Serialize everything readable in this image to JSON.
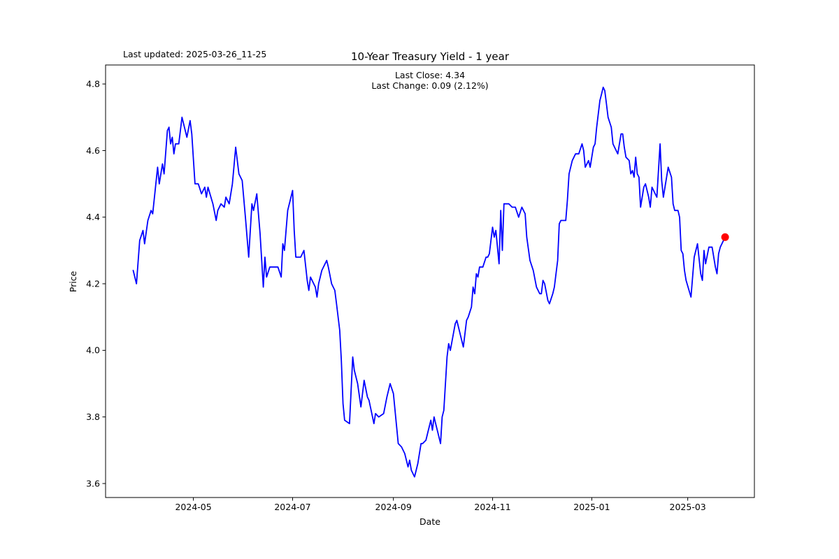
{
  "figure": {
    "last_updated": "Last updated: 2025-03-26_11-25",
    "title": "10-Year Treasury Yield - 1 year",
    "subtitle_line1": "Last Close: 4.34",
    "subtitle_line2": "Last Change: 0.09 (2.12%)",
    "xlabel": "Date",
    "ylabel": "Price"
  },
  "chart_data": {
    "type": "line",
    "title": "10-Year Treasury Yield - 1 year",
    "annotation": "Last updated: 2025-03-26_11-25",
    "subtitle": [
      "Last Close: 4.34",
      "Last Change: 0.09 (2.12%)"
    ],
    "xlabel": "Date",
    "ylabel": "Price",
    "grid": false,
    "legend": false,
    "line_color": "#0000ff",
    "marker_color": "#ff0000",
    "last_close": 4.34,
    "last_change": 0.09,
    "last_change_pct": "2.12%",
    "ylim": [
      3.558,
      4.857
    ],
    "xlim": [
      "2024-03-08",
      "2025-04-11"
    ],
    "y_ticks": [
      {
        "label": "3.6",
        "value": 3.6
      },
      {
        "label": "3.8",
        "value": 3.8
      },
      {
        "label": "4.0",
        "value": 4.0
      },
      {
        "label": "4.2",
        "value": 4.2
      },
      {
        "label": "4.4",
        "value": 4.4
      },
      {
        "label": "4.6",
        "value": 4.6
      },
      {
        "label": "4.8",
        "value": 4.8
      }
    ],
    "x_ticks": [
      {
        "label": "2024-05",
        "date": "2024-05-01"
      },
      {
        "label": "2024-07",
        "date": "2024-07-01"
      },
      {
        "label": "2024-09",
        "date": "2024-09-01"
      },
      {
        "label": "2024-11",
        "date": "2024-11-01"
      },
      {
        "label": "2025-01",
        "date": "2025-01-01"
      },
      {
        "label": "2025-03",
        "date": "2025-03-01"
      }
    ],
    "series": [
      {
        "name": "10-Year Treasury Yield",
        "points": [
          [
            "2024-03-25",
            4.24
          ],
          [
            "2024-03-27",
            4.2
          ],
          [
            "2024-03-29",
            4.33
          ],
          [
            "2024-03-31",
            4.36
          ],
          [
            "2024-04-01",
            4.32
          ],
          [
            "2024-04-03",
            4.39
          ],
          [
            "2024-04-05",
            4.42
          ],
          [
            "2024-04-06",
            4.41
          ],
          [
            "2024-04-09",
            4.55
          ],
          [
            "2024-04-10",
            4.5
          ],
          [
            "2024-04-12",
            4.56
          ],
          [
            "2024-04-13",
            4.53
          ],
          [
            "2024-04-15",
            4.66
          ],
          [
            "2024-04-16",
            4.67
          ],
          [
            "2024-04-17",
            4.62
          ],
          [
            "2024-04-18",
            4.64
          ],
          [
            "2024-04-19",
            4.59
          ],
          [
            "2024-04-20",
            4.62
          ],
          [
            "2024-04-22",
            4.62
          ],
          [
            "2024-04-24",
            4.7
          ],
          [
            "2024-04-27",
            4.64
          ],
          [
            "2024-04-29",
            4.69
          ],
          [
            "2024-04-30",
            4.65
          ],
          [
            "2024-05-02",
            4.5
          ],
          [
            "2024-05-04",
            4.5
          ],
          [
            "2024-05-06",
            4.47
          ],
          [
            "2024-05-08",
            4.49
          ],
          [
            "2024-05-09",
            4.46
          ],
          [
            "2024-05-10",
            4.49
          ],
          [
            "2024-05-13",
            4.44
          ],
          [
            "2024-05-15",
            4.39
          ],
          [
            "2024-05-16",
            4.42
          ],
          [
            "2024-05-18",
            4.44
          ],
          [
            "2024-05-20",
            4.43
          ],
          [
            "2024-05-21",
            4.46
          ],
          [
            "2024-05-23",
            4.44
          ],
          [
            "2024-05-25",
            4.5
          ],
          [
            "2024-05-27",
            4.61
          ],
          [
            "2024-05-29",
            4.53
          ],
          [
            "2024-05-31",
            4.51
          ],
          [
            "2024-06-02",
            4.4
          ],
          [
            "2024-06-04",
            4.28
          ],
          [
            "2024-06-06",
            4.44
          ],
          [
            "2024-06-07",
            4.42
          ],
          [
            "2024-06-09",
            4.47
          ],
          [
            "2024-06-11",
            4.35
          ],
          [
            "2024-06-13",
            4.19
          ],
          [
            "2024-06-14",
            4.28
          ],
          [
            "2024-06-15",
            4.22
          ],
          [
            "2024-06-17",
            4.25
          ],
          [
            "2024-06-20",
            4.25
          ],
          [
            "2024-06-22",
            4.25
          ],
          [
            "2024-06-24",
            4.22
          ],
          [
            "2024-06-25",
            4.32
          ],
          [
            "2024-06-26",
            4.3
          ],
          [
            "2024-06-28",
            4.42
          ],
          [
            "2024-07-01",
            4.48
          ],
          [
            "2024-07-02",
            4.36
          ],
          [
            "2024-07-03",
            4.28
          ],
          [
            "2024-07-05",
            4.28
          ],
          [
            "2024-07-06",
            4.28
          ],
          [
            "2024-07-08",
            4.3
          ],
          [
            "2024-07-10",
            4.21
          ],
          [
            "2024-07-11",
            4.18
          ],
          [
            "2024-07-12",
            4.22
          ],
          [
            "2024-07-15",
            4.19
          ],
          [
            "2024-07-16",
            4.16
          ],
          [
            "2024-07-17",
            4.2
          ],
          [
            "2024-07-19",
            4.24
          ],
          [
            "2024-07-22",
            4.27
          ],
          [
            "2024-07-23",
            4.25
          ],
          [
            "2024-07-25",
            4.2
          ],
          [
            "2024-07-27",
            4.18
          ],
          [
            "2024-07-28",
            4.14
          ],
          [
            "2024-07-30",
            4.06
          ],
          [
            "2024-07-31",
            3.97
          ],
          [
            "2024-08-01",
            3.84
          ],
          [
            "2024-08-02",
            3.79
          ],
          [
            "2024-08-05",
            3.78
          ],
          [
            "2024-08-07",
            3.98
          ],
          [
            "2024-08-08",
            3.94
          ],
          [
            "2024-08-10",
            3.9
          ],
          [
            "2024-08-12",
            3.83
          ],
          [
            "2024-08-14",
            3.91
          ],
          [
            "2024-08-16",
            3.86
          ],
          [
            "2024-08-17",
            3.85
          ],
          [
            "2024-08-20",
            3.78
          ],
          [
            "2024-08-21",
            3.81
          ],
          [
            "2024-08-23",
            3.8
          ],
          [
            "2024-08-26",
            3.81
          ],
          [
            "2024-08-28",
            3.86
          ],
          [
            "2024-08-30",
            3.9
          ],
          [
            "2024-09-01",
            3.87
          ],
          [
            "2024-09-03",
            3.77
          ],
          [
            "2024-09-04",
            3.72
          ],
          [
            "2024-09-06",
            3.71
          ],
          [
            "2024-09-08",
            3.69
          ],
          [
            "2024-09-10",
            3.65
          ],
          [
            "2024-09-11",
            3.67
          ],
          [
            "2024-09-12",
            3.64
          ],
          [
            "2024-09-14",
            3.62
          ],
          [
            "2024-09-16",
            3.66
          ],
          [
            "2024-09-18",
            3.72
          ],
          [
            "2024-09-19",
            3.72
          ],
          [
            "2024-09-21",
            3.73
          ],
          [
            "2024-09-22",
            3.75
          ],
          [
            "2024-09-24",
            3.79
          ],
          [
            "2024-09-25",
            3.76
          ],
          [
            "2024-09-26",
            3.8
          ],
          [
            "2024-09-27",
            3.78
          ],
          [
            "2024-09-29",
            3.74
          ],
          [
            "2024-09-30",
            3.72
          ],
          [
            "2024-10-01",
            3.8
          ],
          [
            "2024-10-02",
            3.82
          ],
          [
            "2024-10-04",
            3.98
          ],
          [
            "2024-10-05",
            4.02
          ],
          [
            "2024-10-06",
            4.0
          ],
          [
            "2024-10-09",
            4.08
          ],
          [
            "2024-10-10",
            4.09
          ],
          [
            "2024-10-14",
            4.01
          ],
          [
            "2024-10-16",
            4.09
          ],
          [
            "2024-10-17",
            4.1
          ],
          [
            "2024-10-19",
            4.13
          ],
          [
            "2024-10-20",
            4.19
          ],
          [
            "2024-10-21",
            4.17
          ],
          [
            "2024-10-22",
            4.23
          ],
          [
            "2024-10-23",
            4.22
          ],
          [
            "2024-10-24",
            4.25
          ],
          [
            "2024-10-26",
            4.25
          ],
          [
            "2024-10-28",
            4.28
          ],
          [
            "2024-10-29",
            4.28
          ],
          [
            "2024-10-30",
            4.29
          ],
          [
            "2024-11-01",
            4.37
          ],
          [
            "2024-11-02",
            4.34
          ],
          [
            "2024-11-03",
            4.36
          ],
          [
            "2024-11-05",
            4.26
          ],
          [
            "2024-11-06",
            4.42
          ],
          [
            "2024-11-07",
            4.3
          ],
          [
            "2024-11-08",
            4.44
          ],
          [
            "2024-11-11",
            4.44
          ],
          [
            "2024-11-13",
            4.43
          ],
          [
            "2024-11-15",
            4.43
          ],
          [
            "2024-11-17",
            4.4
          ],
          [
            "2024-11-19",
            4.43
          ],
          [
            "2024-11-21",
            4.41
          ],
          [
            "2024-11-22",
            4.34
          ],
          [
            "2024-11-24",
            4.27
          ],
          [
            "2024-11-26",
            4.24
          ],
          [
            "2024-11-28",
            4.19
          ],
          [
            "2024-11-30",
            4.17
          ],
          [
            "2024-12-01",
            4.17
          ],
          [
            "2024-12-02",
            4.21
          ],
          [
            "2024-12-03",
            4.2
          ],
          [
            "2024-12-05",
            4.15
          ],
          [
            "2024-12-06",
            4.14
          ],
          [
            "2024-12-08",
            4.17
          ],
          [
            "2024-12-09",
            4.19
          ],
          [
            "2024-12-11",
            4.27
          ],
          [
            "2024-12-12",
            4.38
          ],
          [
            "2024-12-13",
            4.39
          ],
          [
            "2024-12-16",
            4.39
          ],
          [
            "2024-12-17",
            4.45
          ],
          [
            "2024-12-18",
            4.53
          ],
          [
            "2024-12-20",
            4.57
          ],
          [
            "2024-12-22",
            4.59
          ],
          [
            "2024-12-24",
            4.59
          ],
          [
            "2024-12-26",
            4.62
          ],
          [
            "2024-12-27",
            4.6
          ],
          [
            "2024-12-28",
            4.55
          ],
          [
            "2024-12-30",
            4.57
          ],
          [
            "2024-12-31",
            4.55
          ],
          [
            "2025-01-02",
            4.61
          ],
          [
            "2025-01-03",
            4.62
          ],
          [
            "2025-01-04",
            4.67
          ],
          [
            "2025-01-06",
            4.75
          ],
          [
            "2025-01-07",
            4.77
          ],
          [
            "2025-01-08",
            4.79
          ],
          [
            "2025-01-09",
            4.78
          ],
          [
            "2025-01-10",
            4.74
          ],
          [
            "2025-01-11",
            4.7
          ],
          [
            "2025-01-13",
            4.67
          ],
          [
            "2025-01-14",
            4.62
          ],
          [
            "2025-01-15",
            4.61
          ],
          [
            "2025-01-16",
            4.6
          ],
          [
            "2025-01-17",
            4.59
          ],
          [
            "2025-01-19",
            4.65
          ],
          [
            "2025-01-20",
            4.65
          ],
          [
            "2025-01-21",
            4.61
          ],
          [
            "2025-01-22",
            4.58
          ],
          [
            "2025-01-24",
            4.57
          ],
          [
            "2025-01-25",
            4.53
          ],
          [
            "2025-01-26",
            4.54
          ],
          [
            "2025-01-27",
            4.52
          ],
          [
            "2025-01-28",
            4.58
          ],
          [
            "2025-01-29",
            4.53
          ],
          [
            "2025-01-30",
            4.52
          ],
          [
            "2025-01-31",
            4.43
          ],
          [
            "2025-02-02",
            4.49
          ],
          [
            "2025-02-03",
            4.5
          ],
          [
            "2025-02-05",
            4.46
          ],
          [
            "2025-02-06",
            4.43
          ],
          [
            "2025-02-07",
            4.49
          ],
          [
            "2025-02-09",
            4.47
          ],
          [
            "2025-02-10",
            4.46
          ],
          [
            "2025-02-12",
            4.62
          ],
          [
            "2025-02-13",
            4.51
          ],
          [
            "2025-02-14",
            4.46
          ],
          [
            "2025-02-16",
            4.52
          ],
          [
            "2025-02-17",
            4.55
          ],
          [
            "2025-02-19",
            4.52
          ],
          [
            "2025-02-20",
            4.44
          ],
          [
            "2025-02-21",
            4.42
          ],
          [
            "2025-02-23",
            4.42
          ],
          [
            "2025-02-24",
            4.4
          ],
          [
            "2025-02-25",
            4.3
          ],
          [
            "2025-02-26",
            4.29
          ],
          [
            "2025-02-27",
            4.24
          ],
          [
            "2025-02-28",
            4.21
          ],
          [
            "2025-03-03",
            4.16
          ],
          [
            "2025-03-05",
            4.28
          ],
          [
            "2025-03-07",
            4.32
          ],
          [
            "2025-03-09",
            4.23
          ],
          [
            "2025-03-10",
            4.21
          ],
          [
            "2025-03-11",
            4.3
          ],
          [
            "2025-03-12",
            4.26
          ],
          [
            "2025-03-14",
            4.31
          ],
          [
            "2025-03-16",
            4.31
          ],
          [
            "2025-03-18",
            4.25
          ],
          [
            "2025-03-19",
            4.23
          ],
          [
            "2025-03-20",
            4.29
          ],
          [
            "2025-03-21",
            4.31
          ],
          [
            "2025-03-24",
            4.34
          ]
        ]
      }
    ]
  }
}
